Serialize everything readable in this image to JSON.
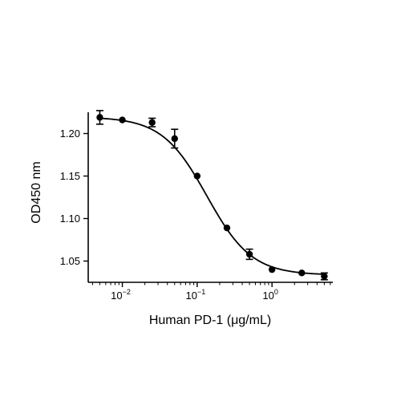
{
  "chart_data": {
    "type": "scatter",
    "xlabel": "Human PD-1 (μg/mL)",
    "ylabel": "OD450 nm",
    "xscale": "log",
    "xlim": [
      0.0035,
      6.5
    ],
    "ylim": [
      1.025,
      1.225
    ],
    "grid": false,
    "legend": "none",
    "x_ticks": [
      {
        "value": 0.01,
        "base": "10",
        "exp": "−2"
      },
      {
        "value": 0.1,
        "base": "10",
        "exp": "−1"
      },
      {
        "value": 1,
        "base": "10",
        "exp": "0"
      }
    ],
    "y_ticks": [
      {
        "value": 1.05,
        "label": "1.05"
      },
      {
        "value": 1.1,
        "label": "1.10"
      },
      {
        "value": 1.15,
        "label": "1.15"
      },
      {
        "value": 1.2,
        "label": "1.20"
      }
    ],
    "series": [
      {
        "marker": "circle",
        "color": "#000000",
        "fit": "four-parameter logistic",
        "points": [
          {
            "x": 0.005,
            "y": 1.219,
            "err": 0.008
          },
          {
            "x": 0.01,
            "y": 1.216,
            "err": 0
          },
          {
            "x": 0.025,
            "y": 1.213,
            "err": 0.005
          },
          {
            "x": 0.05,
            "y": 1.194,
            "err": 0.011
          },
          {
            "x": 0.1,
            "y": 1.15,
            "err": 0
          },
          {
            "x": 0.25,
            "y": 1.089,
            "err": 0
          },
          {
            "x": 0.5,
            "y": 1.058,
            "err": 0.006
          },
          {
            "x": 1,
            "y": 1.04,
            "err": 0
          },
          {
            "x": 2.5,
            "y": 1.036,
            "err": 0
          },
          {
            "x": 5,
            "y": 1.032,
            "err": 0.004
          }
        ]
      }
    ]
  }
}
